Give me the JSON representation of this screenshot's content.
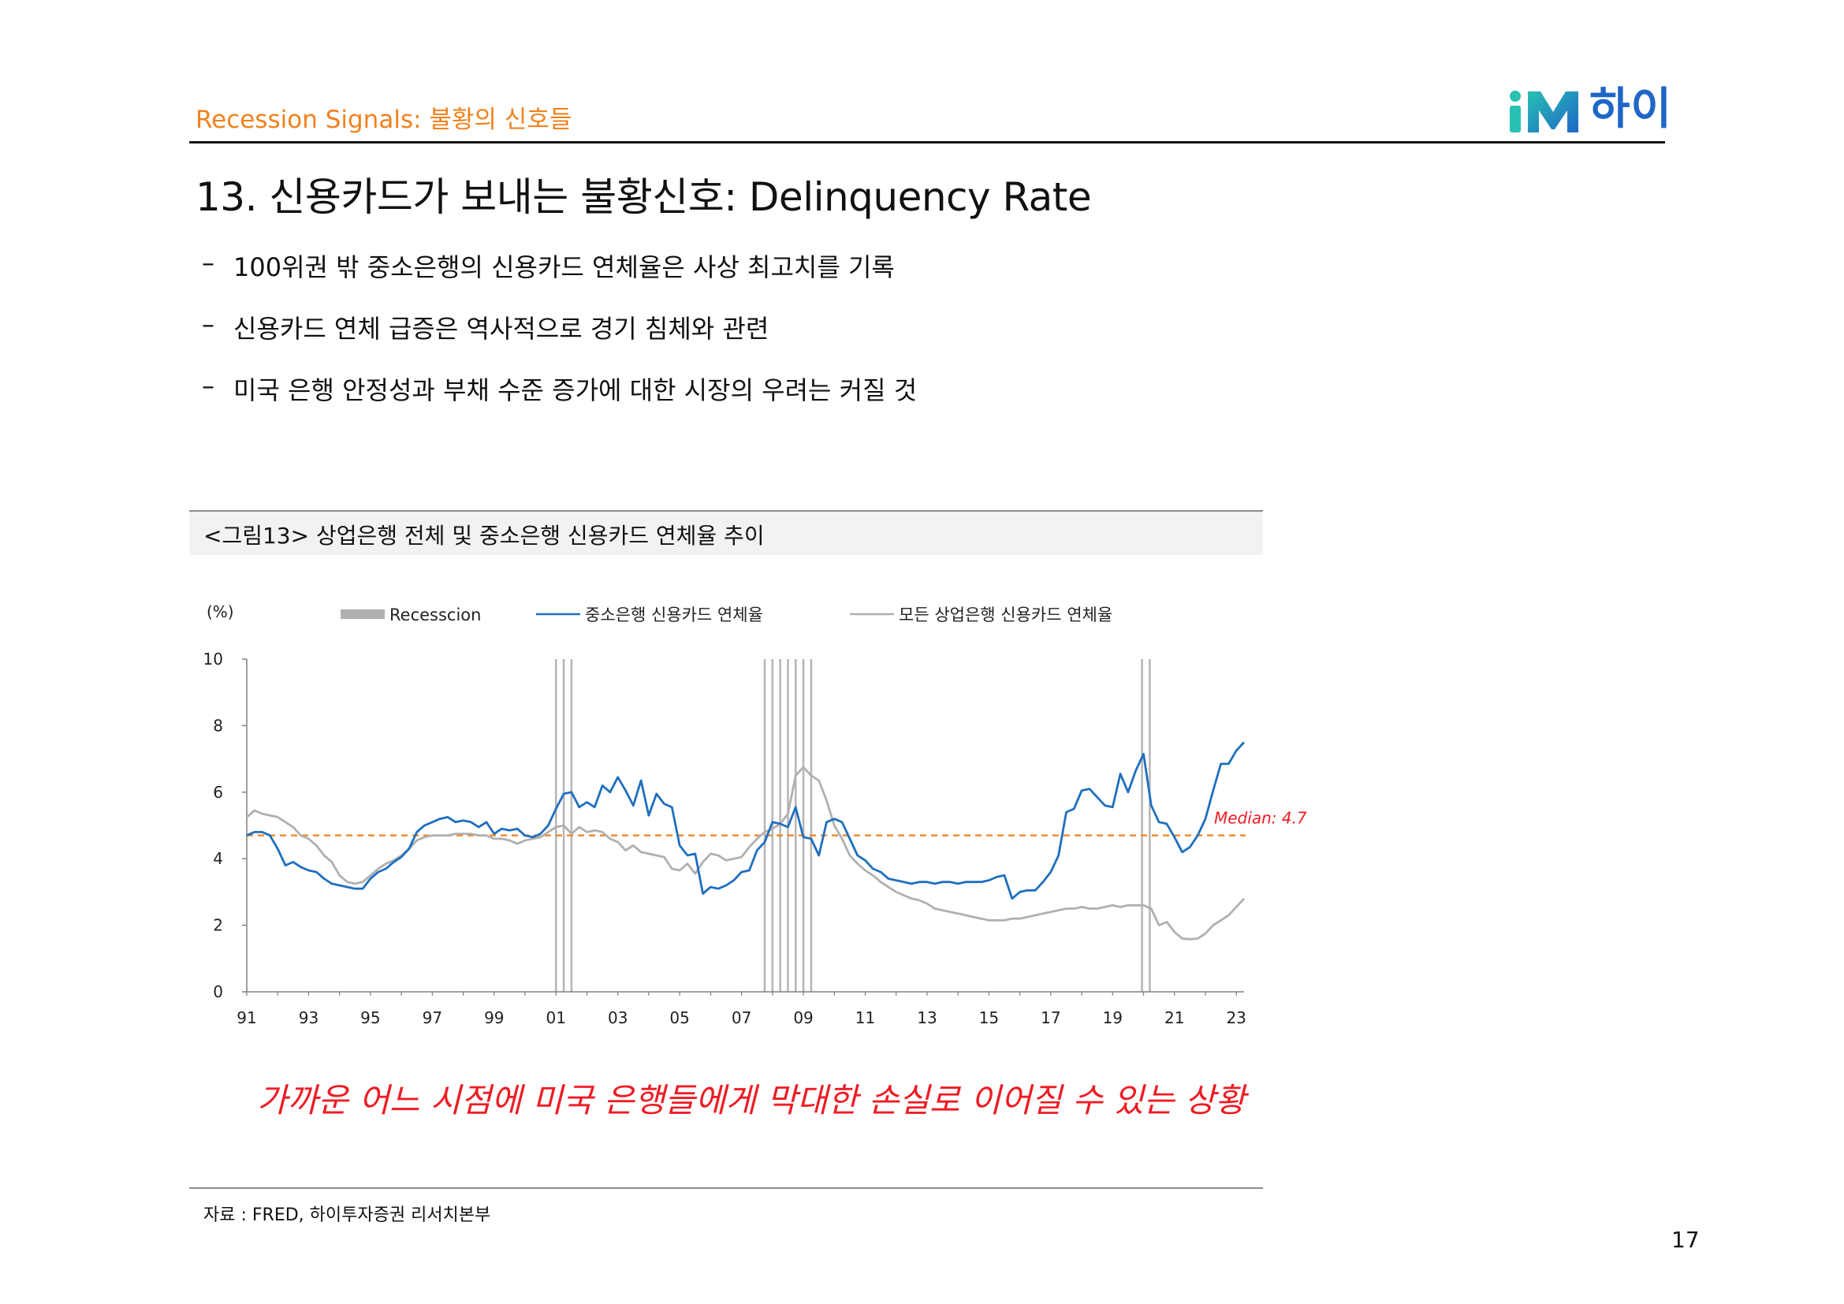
{
  "header": {
    "section": "Recession Signals: 불황의 신호들",
    "logo_text": "하이",
    "logo_icon": "im-logo-icon",
    "accent_color": "#f0821e"
  },
  "title": "13. 신용카드가 보내는 불황신호: Delinquency Rate",
  "bullets": [
    "100위권 밖 중소은행의 신용카드 연체율은 사상 최고치를 기록",
    "신용카드 연체 급증은 역사적으로 경기 침체와 관련",
    "미국 은행 안정성과 부채 수준 증가에 대한 시장의 우려는 커질 것"
  ],
  "bullet_marker": "–",
  "figure_caption": "<그림13> 상업은행 전체 및 중소은행 신용카드 연체율 추이",
  "callout": "가까운 어느 시점에 미국 은행들에게 막대한 손실로 이어질 수 있는 상황",
  "source": "자료 : FRED, 하이투자증권 리서치본부",
  "page_number": "17",
  "chart_data": {
    "type": "line",
    "unit_label": "(%)",
    "ylim": [
      0,
      10
    ],
    "yticks": [
      0,
      2,
      4,
      6,
      8,
      10
    ],
    "xlim": [
      1991,
      2023.25
    ],
    "xticks": [
      1991,
      1993,
      1995,
      1997,
      1999,
      2001,
      2003,
      2005,
      2007,
      2009,
      2011,
      2013,
      2015,
      2017,
      2019,
      2021,
      2023
    ],
    "xtick_labels": [
      "91",
      "93",
      "95",
      "97",
      "99",
      "01",
      "03",
      "05",
      "07",
      "09",
      "11",
      "13",
      "15",
      "17",
      "19",
      "21",
      "23"
    ],
    "legend": {
      "position": "top",
      "items": [
        {
          "label": "Recesscion",
          "kind": "bar",
          "color": "#b0b0b0"
        },
        {
          "label": "중소은행 신용카드 연체율",
          "kind": "line",
          "color": "#1f6fbf"
        },
        {
          "label": "모든 상업은행 신용카드 연체율",
          "kind": "line",
          "color": "#b0b0b0"
        }
      ]
    },
    "recession_lines": [
      2001.0,
      2001.25,
      2001.5,
      2007.75,
      2008.0,
      2008.25,
      2008.5,
      2008.75,
      2009.0,
      2009.25,
      2019.95,
      2020.2
    ],
    "median": {
      "value": 4.7,
      "label": "Median: 4.7",
      "color": "#f0821e",
      "label_color": "#ee1c24"
    },
    "series": [
      {
        "name": "중소은행 신용카드 연체율",
        "color": "#1f6fbf",
        "x": [
          1991.0,
          1991.25,
          1991.5,
          1991.75,
          1992.0,
          1992.25,
          1992.5,
          1992.75,
          1993.0,
          1993.25,
          1993.5,
          1993.75,
          1994.0,
          1994.25,
          1994.5,
          1994.75,
          1995.0,
          1995.25,
          1995.5,
          1995.75,
          1996.0,
          1996.25,
          1996.5,
          1996.75,
          1997.0,
          1997.25,
          1997.5,
          1997.75,
          1998.0,
          1998.25,
          1998.5,
          1998.75,
          1999.0,
          1999.25,
          1999.5,
          1999.75,
          2000.0,
          2000.25,
          2000.5,
          2000.75,
          2001.0,
          2001.25,
          2001.5,
          2001.75,
          2002.0,
          2002.25,
          2002.5,
          2002.75,
          2003.0,
          2003.25,
          2003.5,
          2003.75,
          2004.0,
          2004.25,
          2004.5,
          2004.75,
          2005.0,
          2005.25,
          2005.5,
          2005.75,
          2006.0,
          2006.25,
          2006.5,
          2006.75,
          2007.0,
          2007.25,
          2007.5,
          2007.75,
          2008.0,
          2008.25,
          2008.5,
          2008.75,
          2009.0,
          2009.25,
          2009.5,
          2009.75,
          2010.0,
          2010.25,
          2010.5,
          2010.75,
          2011.0,
          2011.25,
          2011.5,
          2011.75,
          2012.0,
          2012.25,
          2012.5,
          2012.75,
          2013.0,
          2013.25,
          2013.5,
          2013.75,
          2014.0,
          2014.25,
          2014.5,
          2014.75,
          2015.0,
          2015.25,
          2015.5,
          2015.75,
          2016.0,
          2016.25,
          2016.5,
          2016.75,
          2017.0,
          2017.25,
          2017.5,
          2017.75,
          2018.0,
          2018.25,
          2018.5,
          2018.75,
          2019.0,
          2019.25,
          2019.5,
          2019.75,
          2020.0,
          2020.25,
          2020.5,
          2020.75,
          2021.0,
          2021.25,
          2021.5,
          2021.75,
          2022.0,
          2022.25,
          2022.5,
          2022.75,
          2023.0,
          2023.25
        ],
        "values": [
          4.7,
          4.8,
          4.8,
          4.7,
          4.3,
          3.8,
          3.9,
          3.75,
          3.65,
          3.6,
          3.4,
          3.25,
          3.2,
          3.15,
          3.1,
          3.1,
          3.4,
          3.6,
          3.7,
          3.9,
          4.05,
          4.3,
          4.8,
          5.0,
          5.1,
          5.2,
          5.25,
          5.1,
          5.15,
          5.1,
          4.95,
          5.1,
          4.75,
          4.9,
          4.85,
          4.9,
          4.7,
          4.65,
          4.75,
          5.0,
          5.5,
          5.95,
          6.0,
          5.55,
          5.7,
          5.55,
          6.2,
          6.0,
          6.45,
          6.05,
          5.6,
          6.35,
          5.3,
          5.95,
          5.65,
          5.55,
          4.4,
          4.1,
          4.15,
          2.95,
          3.15,
          3.1,
          3.2,
          3.35,
          3.6,
          3.65,
          4.25,
          4.5,
          5.1,
          5.05,
          4.95,
          5.55,
          4.65,
          4.6,
          4.1,
          5.1,
          5.2,
          5.1,
          4.6,
          4.1,
          3.95,
          3.7,
          3.6,
          3.4,
          3.35,
          3.3,
          3.25,
          3.3,
          3.3,
          3.25,
          3.3,
          3.3,
          3.25,
          3.3,
          3.3,
          3.3,
          3.35,
          3.45,
          3.5,
          2.8,
          3.0,
          3.05,
          3.05,
          3.3,
          3.6,
          4.1,
          5.4,
          5.5,
          6.05,
          6.1,
          5.85,
          5.6,
          5.55,
          6.55,
          6.0,
          6.65,
          7.15,
          5.6,
          5.1,
          5.05,
          4.65,
          4.2,
          4.35,
          4.7,
          5.2,
          6.05,
          6.85,
          6.85,
          7.25,
          7.5
        ]
      },
      {
        "name": "모든 상업은행 신용카드 연체율",
        "color": "#b0b0b0",
        "x": [
          1991.0,
          1991.25,
          1991.5,
          1991.75,
          1992.0,
          1992.25,
          1992.5,
          1992.75,
          1993.0,
          1993.25,
          1993.5,
          1993.75,
          1994.0,
          1994.25,
          1994.5,
          1994.75,
          1995.0,
          1995.25,
          1995.5,
          1995.75,
          1996.0,
          1996.25,
          1996.5,
          1996.75,
          1997.0,
          1997.25,
          1997.5,
          1997.75,
          1998.0,
          1998.25,
          1998.5,
          1998.75,
          1999.0,
          1999.25,
          1999.5,
          1999.75,
          2000.0,
          2000.25,
          2000.5,
          2000.75,
          2001.0,
          2001.25,
          2001.5,
          2001.75,
          2002.0,
          2002.25,
          2002.5,
          2002.75,
          2003.0,
          2003.25,
          2003.5,
          2003.75,
          2004.0,
          2004.25,
          2004.5,
          2004.75,
          2005.0,
          2005.25,
          2005.5,
          2005.75,
          2006.0,
          2006.25,
          2006.5,
          2006.75,
          2007.0,
          2007.25,
          2007.5,
          2007.75,
          2008.0,
          2008.25,
          2008.5,
          2008.75,
          2009.0,
          2009.25,
          2009.5,
          2009.75,
          2010.0,
          2010.25,
          2010.5,
          2010.75,
          2011.0,
          2011.25,
          2011.5,
          2011.75,
          2012.0,
          2012.25,
          2012.5,
          2012.75,
          2013.0,
          2013.25,
          2013.5,
          2013.75,
          2014.0,
          2014.25,
          2014.5,
          2014.75,
          2015.0,
          2015.25,
          2015.5,
          2015.75,
          2016.0,
          2016.25,
          2016.5,
          2016.75,
          2017.0,
          2017.25,
          2017.5,
          2017.75,
          2018.0,
          2018.25,
          2018.5,
          2018.75,
          2019.0,
          2019.25,
          2019.5,
          2019.75,
          2020.0,
          2020.25,
          2020.5,
          2020.75,
          2021.0,
          2021.25,
          2021.5,
          2021.75,
          2022.0,
          2022.25,
          2022.5,
          2022.75,
          2023.0,
          2023.25
        ],
        "values": [
          5.25,
          5.45,
          5.35,
          5.3,
          5.25,
          5.1,
          4.95,
          4.7,
          4.6,
          4.4,
          4.1,
          3.9,
          3.5,
          3.3,
          3.25,
          3.3,
          3.5,
          3.7,
          3.85,
          3.95,
          4.1,
          4.3,
          4.55,
          4.65,
          4.7,
          4.7,
          4.7,
          4.75,
          4.75,
          4.75,
          4.7,
          4.7,
          4.6,
          4.6,
          4.55,
          4.45,
          4.55,
          4.6,
          4.65,
          4.8,
          4.95,
          5.0,
          4.75,
          4.95,
          4.8,
          4.85,
          4.8,
          4.6,
          4.5,
          4.25,
          4.4,
          4.2,
          4.15,
          4.1,
          4.05,
          3.7,
          3.65,
          3.85,
          3.55,
          3.9,
          4.15,
          4.1,
          3.95,
          4.0,
          4.05,
          4.35,
          4.6,
          4.8,
          4.9,
          5.05,
          5.35,
          6.5,
          6.75,
          6.5,
          6.35,
          5.75,
          5.0,
          4.6,
          4.1,
          3.85,
          3.65,
          3.5,
          3.3,
          3.15,
          3.0,
          2.9,
          2.8,
          2.75,
          2.65,
          2.5,
          2.45,
          2.4,
          2.35,
          2.3,
          2.25,
          2.2,
          2.15,
          2.15,
          2.15,
          2.2,
          2.2,
          2.25,
          2.3,
          2.35,
          2.4,
          2.45,
          2.5,
          2.5,
          2.55,
          2.5,
          2.5,
          2.55,
          2.6,
          2.55,
          2.6,
          2.6,
          2.6,
          2.5,
          2.0,
          2.1,
          1.8,
          1.6,
          1.58,
          1.6,
          1.75,
          2.0,
          2.15,
          2.3,
          2.55,
          2.8
        ]
      }
    ]
  }
}
